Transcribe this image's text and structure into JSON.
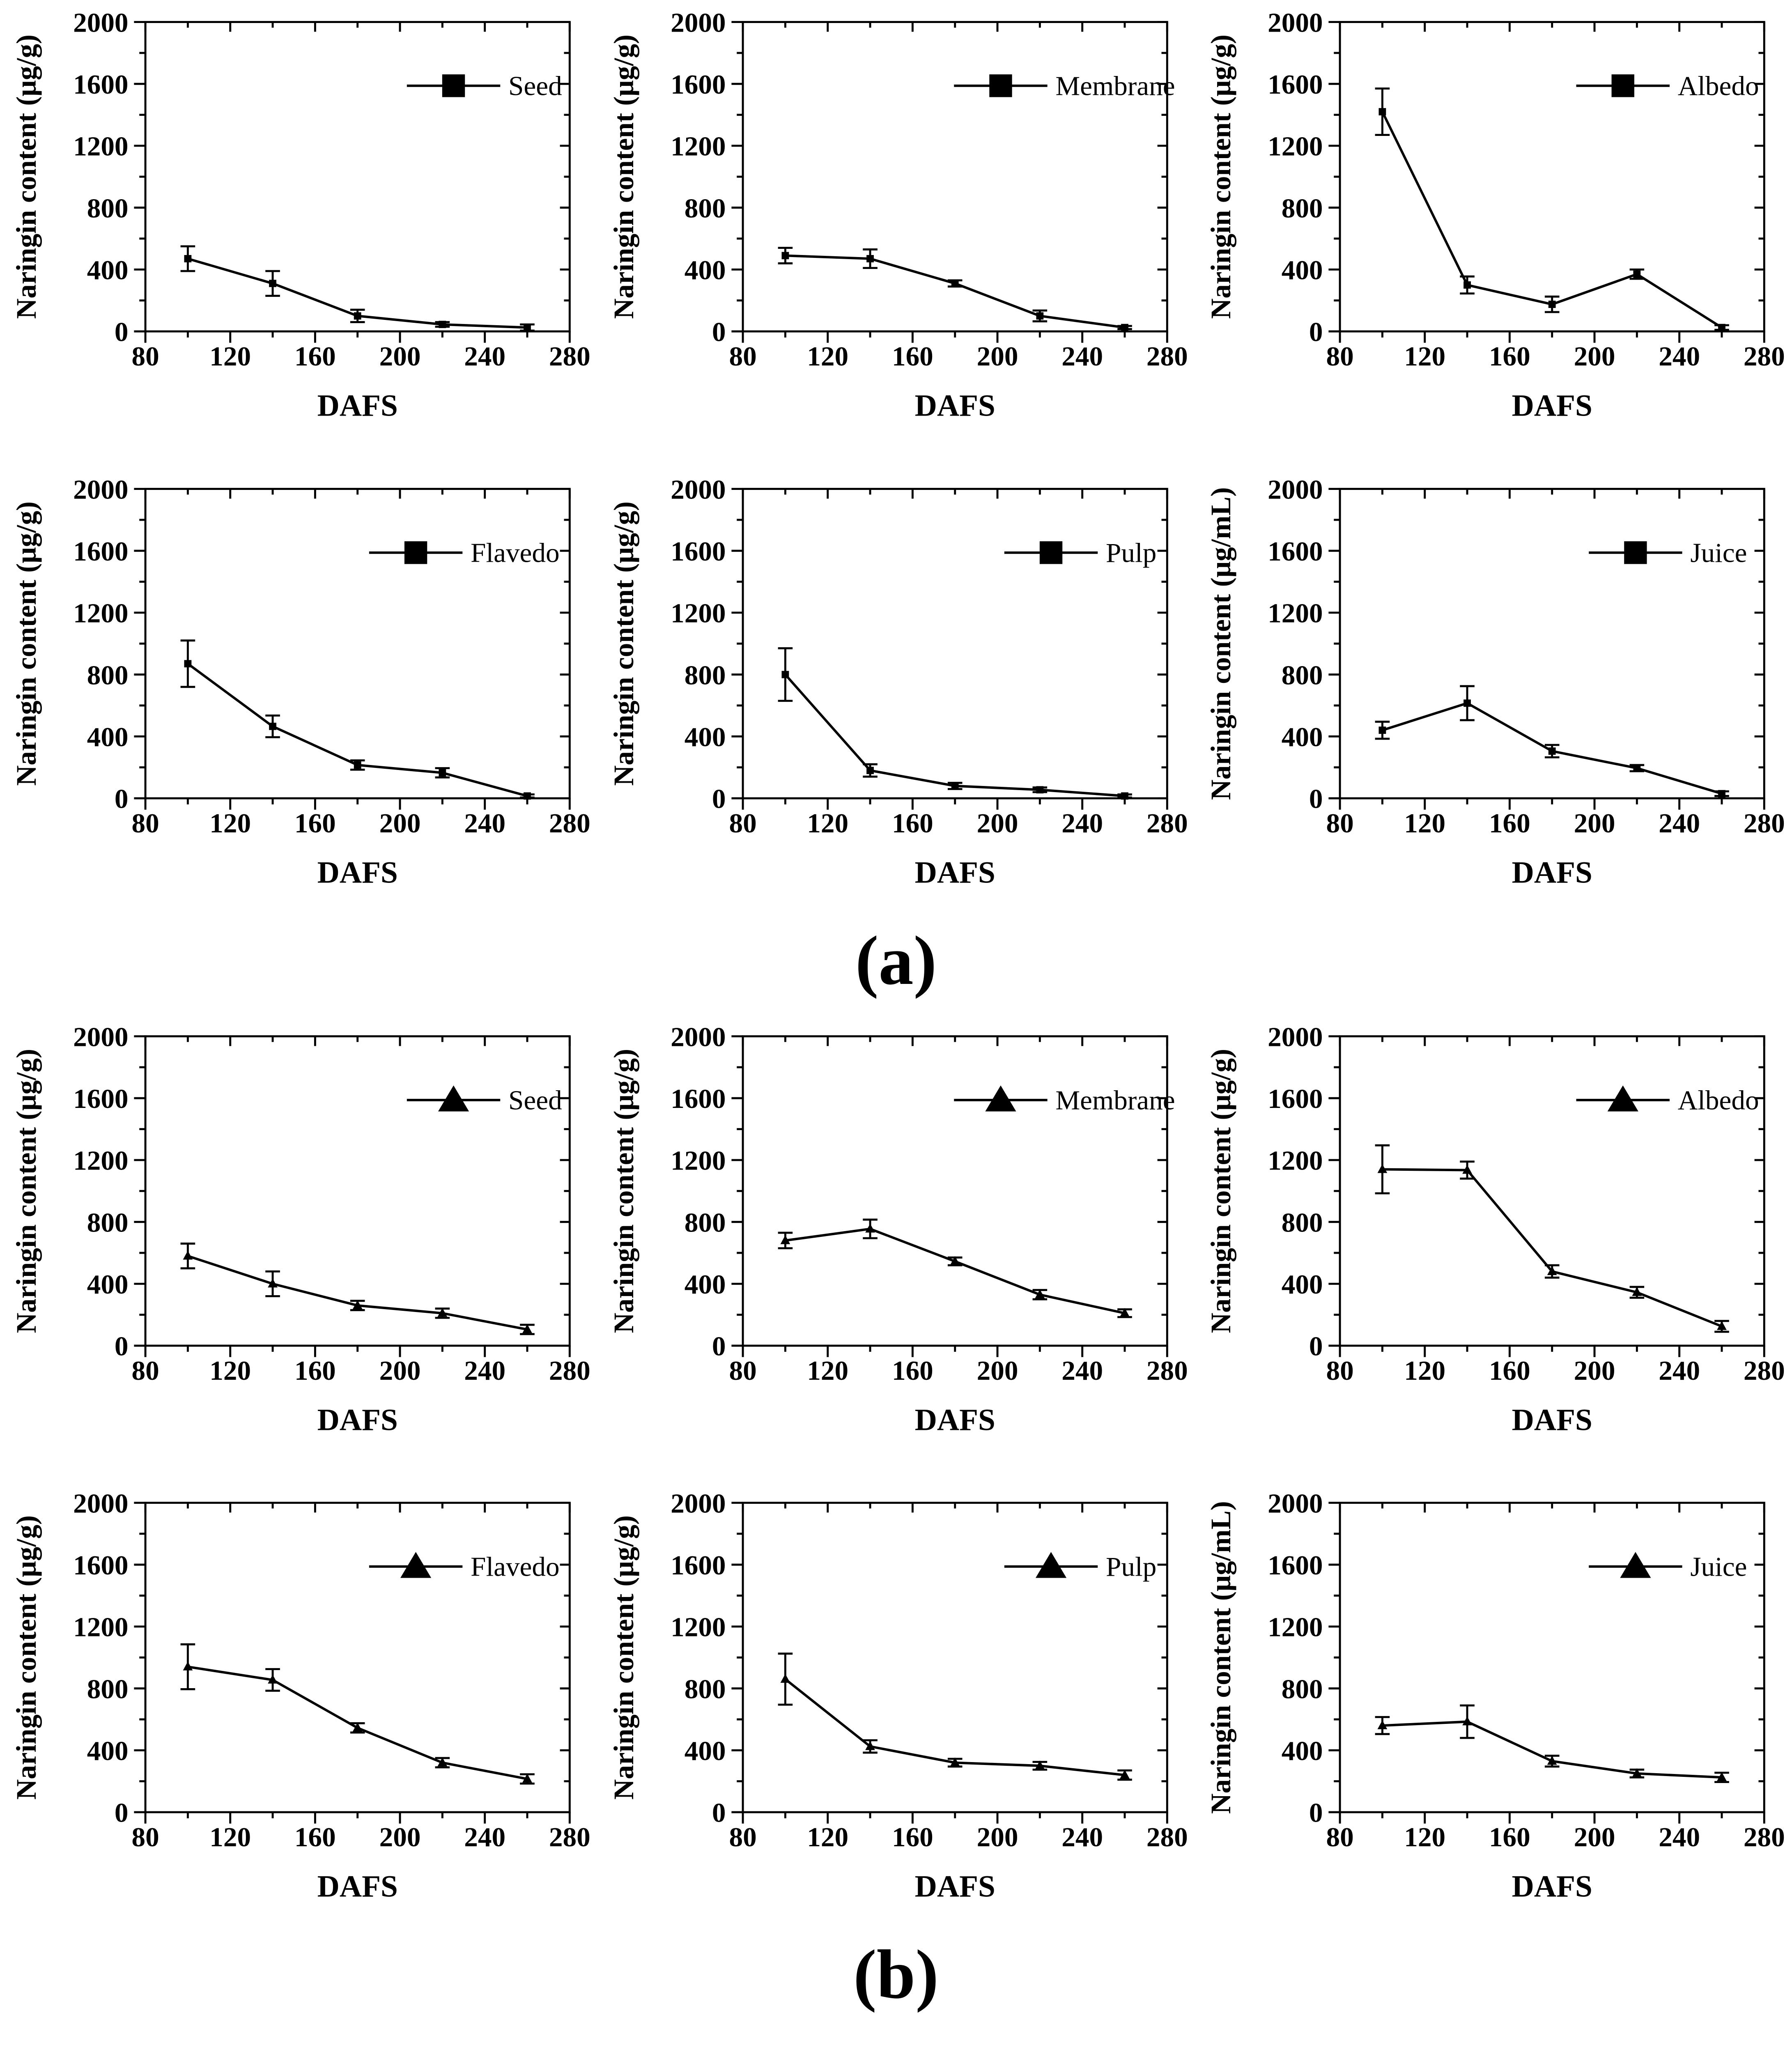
{
  "figure": {
    "panel_a_label": "(a)",
    "panel_b_label": "(b)"
  },
  "colors": {
    "line": "#000000",
    "text": "#000000",
    "background": "#ffffff"
  },
  "axes": {
    "x_label": "DAFS",
    "x_range": [
      80,
      280
    ],
    "x_major": [
      80,
      120,
      160,
      200,
      240,
      280
    ],
    "x_minor": [
      100,
      140,
      180,
      220,
      260
    ],
    "y_range": [
      0,
      2000
    ],
    "y_major": [
      0,
      400,
      800,
      1200,
      1600,
      2000
    ],
    "y_minor": [
      200,
      600,
      1000,
      1400,
      1800
    ],
    "grid": "off",
    "legend_position": "top-right"
  },
  "chart_data": [
    {
      "panel": "a",
      "type": "line",
      "legend": "Seed",
      "marker": "square",
      "ylabel": "Naringin content (μg/g)",
      "xlabel": "DAFS",
      "xlim": [
        80,
        280
      ],
      "ylim": [
        0,
        2000
      ],
      "x": [
        100,
        140,
        180,
        220,
        260
      ],
      "y": [
        470,
        310,
        100,
        45,
        25
      ],
      "yerr": [
        80,
        80,
        40,
        15,
        20
      ]
    },
    {
      "panel": "a",
      "type": "line",
      "legend": "Membrane",
      "marker": "square",
      "ylabel": "Naringin content (μg/g)",
      "xlabel": "DAFS",
      "xlim": [
        80,
        280
      ],
      "ylim": [
        0,
        2000
      ],
      "x": [
        100,
        140,
        180,
        220,
        260
      ],
      "y": [
        490,
        470,
        310,
        100,
        25
      ],
      "yerr": [
        50,
        60,
        20,
        35,
        10
      ]
    },
    {
      "panel": "a",
      "type": "line",
      "legend": "Albedo",
      "marker": "square",
      "ylabel": "Naringin content (μg/g)",
      "xlabel": "DAFS",
      "xlim": [
        80,
        280
      ],
      "ylim": [
        0,
        2000
      ],
      "x": [
        100,
        140,
        180,
        220,
        260
      ],
      "y": [
        1420,
        300,
        175,
        370,
        25
      ],
      "yerr": [
        150,
        55,
        50,
        30,
        15
      ]
    },
    {
      "panel": "a",
      "type": "line",
      "legend": "Flavedo",
      "marker": "square",
      "ylabel": "Naringin content (μg/g)",
      "xlabel": "DAFS",
      "xlim": [
        80,
        280
      ],
      "ylim": [
        0,
        2000
      ],
      "x": [
        100,
        140,
        180,
        220,
        260
      ],
      "y": [
        870,
        465,
        215,
        165,
        15
      ],
      "yerr": [
        150,
        70,
        30,
        30,
        10
      ]
    },
    {
      "panel": "a",
      "type": "line",
      "legend": "Pulp",
      "marker": "square",
      "ylabel": "Naringin content (μg/g)",
      "xlabel": "DAFS",
      "xlim": [
        80,
        280
      ],
      "ylim": [
        0,
        2000
      ],
      "x": [
        100,
        140,
        180,
        220,
        260
      ],
      "y": [
        800,
        180,
        80,
        55,
        15
      ],
      "yerr": [
        170,
        40,
        20,
        15,
        10
      ]
    },
    {
      "panel": "a",
      "type": "line",
      "legend": "Juice",
      "marker": "square",
      "ylabel": "Naringin content (μg/mL)",
      "xlabel": "DAFS",
      "xlim": [
        80,
        280
      ],
      "ylim": [
        0,
        2000
      ],
      "x": [
        100,
        140,
        180,
        220,
        260
      ],
      "y": [
        440,
        615,
        305,
        195,
        30
      ],
      "yerr": [
        55,
        110,
        40,
        20,
        15
      ]
    },
    {
      "panel": "b",
      "type": "line",
      "legend": "Seed",
      "marker": "triangle",
      "ylabel": "Naringin content (μg/g)",
      "xlabel": "DAFS",
      "xlim": [
        80,
        280
      ],
      "ylim": [
        0,
        2000
      ],
      "x": [
        100,
        140,
        180,
        220,
        260
      ],
      "y": [
        580,
        400,
        260,
        210,
        105
      ],
      "yerr": [
        80,
        80,
        30,
        30,
        30
      ]
    },
    {
      "panel": "b",
      "type": "line",
      "legend": "Membrane",
      "marker": "triangle",
      "ylabel": "Naringin content (μg/g)",
      "xlabel": "DAFS",
      "xlim": [
        80,
        280
      ],
      "ylim": [
        0,
        2000
      ],
      "x": [
        100,
        140,
        180,
        220,
        260
      ],
      "y": [
        680,
        755,
        545,
        330,
        210
      ],
      "yerr": [
        50,
        60,
        25,
        30,
        25
      ]
    },
    {
      "panel": "b",
      "type": "line",
      "legend": "Albedo",
      "marker": "triangle",
      "ylabel": "Naringin content (μg/g)",
      "xlabel": "DAFS",
      "xlim": [
        80,
        280
      ],
      "ylim": [
        0,
        2000
      ],
      "x": [
        100,
        140,
        180,
        220,
        260
      ],
      "y": [
        1140,
        1135,
        480,
        345,
        125
      ],
      "yerr": [
        155,
        55,
        40,
        35,
        35
      ]
    },
    {
      "panel": "b",
      "type": "line",
      "legend": "Flavedo",
      "marker": "triangle",
      "ylabel": "Naringin content (μg/g)",
      "xlabel": "DAFS",
      "xlim": [
        80,
        280
      ],
      "ylim": [
        0,
        2000
      ],
      "x": [
        100,
        140,
        180,
        220,
        260
      ],
      "y": [
        940,
        855,
        545,
        320,
        215
      ],
      "yerr": [
        145,
        70,
        30,
        30,
        30
      ]
    },
    {
      "panel": "b",
      "type": "line",
      "legend": "Pulp",
      "marker": "triangle",
      "ylabel": "Naringin content (μg/g)",
      "xlabel": "DAFS",
      "xlim": [
        80,
        280
      ],
      "ylim": [
        0,
        2000
      ],
      "x": [
        100,
        140,
        180,
        220,
        260
      ],
      "y": [
        860,
        425,
        320,
        300,
        240
      ],
      "yerr": [
        165,
        40,
        25,
        25,
        30
      ]
    },
    {
      "panel": "b",
      "type": "line",
      "legend": "Juice",
      "marker": "triangle",
      "ylabel": "Naringin content (μg/mL)",
      "xlabel": "DAFS",
      "xlim": [
        80,
        280
      ],
      "ylim": [
        0,
        2000
      ],
      "x": [
        100,
        140,
        180,
        220,
        260
      ],
      "y": [
        560,
        585,
        330,
        250,
        225
      ],
      "yerr": [
        55,
        105,
        35,
        25,
        30
      ]
    }
  ]
}
